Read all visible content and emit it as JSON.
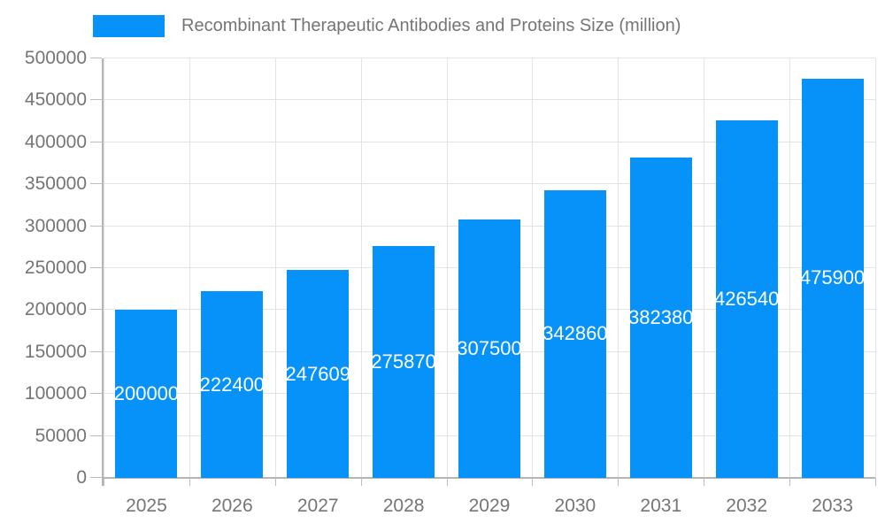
{
  "chart_data": {
    "type": "bar",
    "series_name": "Recombinant Therapeutic Antibodies and Proteins Size (million)",
    "categories": [
      "2025",
      "2026",
      "2027",
      "2028",
      "2029",
      "2030",
      "2031",
      "2032",
      "2033"
    ],
    "values": [
      200000,
      222400,
      247609,
      275870,
      307500,
      342860,
      382380,
      426540,
      475900
    ],
    "bar_value_labels": [
      "200000",
      "222400",
      "247609",
      "275870",
      "307500",
      "342860",
      "382380",
      "426540",
      "475900"
    ],
    "title": "",
    "xlabel": "",
    "ylabel": "",
    "ylim": [
      0,
      500000
    ],
    "ytick_step": 50000,
    "yticks": [
      0,
      50000,
      100000,
      150000,
      200000,
      250000,
      300000,
      350000,
      400000,
      450000,
      500000
    ],
    "grid": true,
    "legend_position": "top"
  },
  "colors": {
    "bar": "#0792f9",
    "bar_label": "#ffffff",
    "axis_text": "#757575",
    "legend_text": "#757575",
    "grid": "#e3e3e3",
    "tick": "#bcbcbc",
    "axis_line": "#b5b5b5",
    "background": "#ffffff"
  }
}
